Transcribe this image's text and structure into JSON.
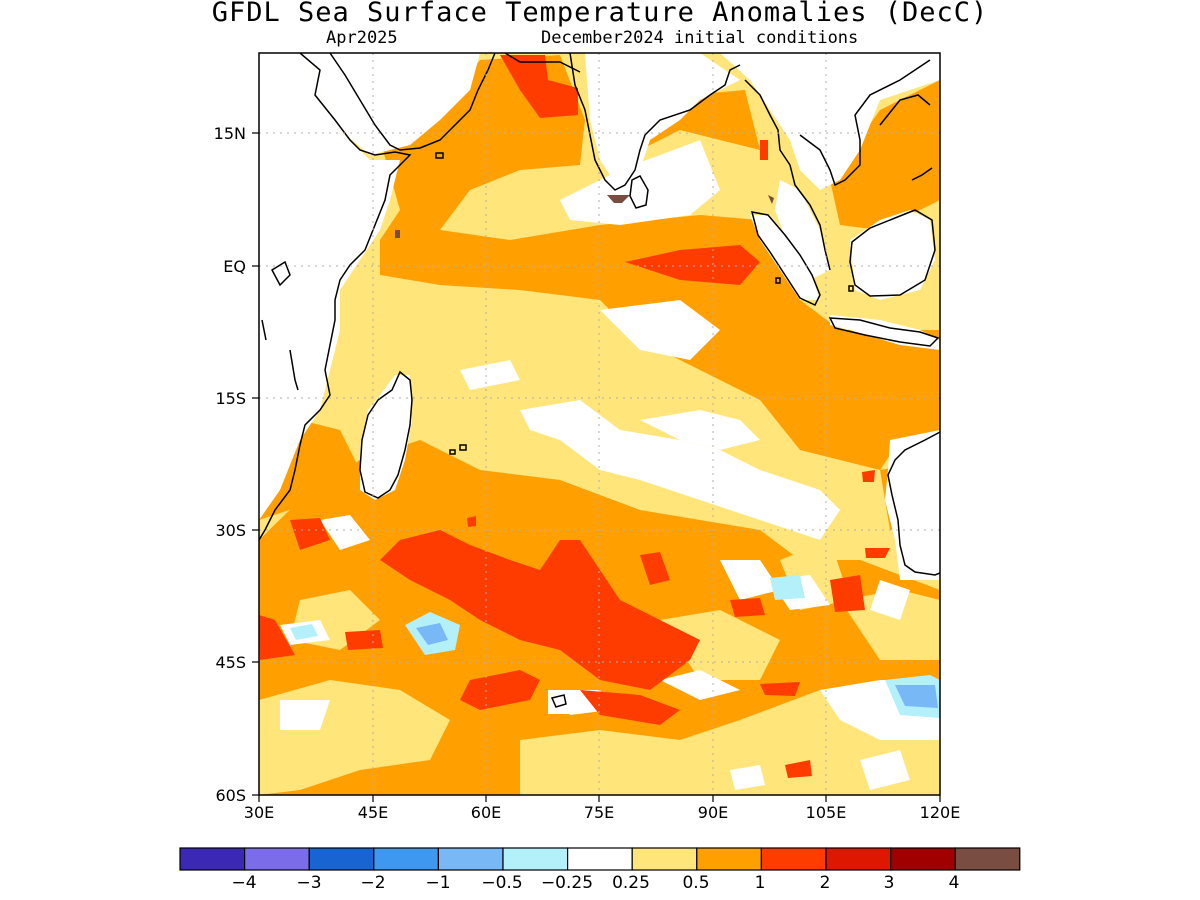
{
  "title": "GFDL Sea Surface Temperature Anomalies (DecC)",
  "forecast_month": "Apr2025",
  "initial_conditions": "December2024 initial conditions",
  "lon_labels": [
    "30E",
    "45E",
    "60E",
    "75E",
    "90E",
    "105E",
    "120E"
  ],
  "lat_labels": [
    "15N",
    "EQ",
    "15S",
    "30S",
    "45S",
    "60S"
  ],
  "colorbar": {
    "colors": [
      "#3b28b4",
      "#7b6cea",
      "#1764d2",
      "#3f98f0",
      "#78b8f6",
      "#b4f0fa",
      "#ffffff",
      "#ffe57a",
      "#ffa000",
      "#ff3c00",
      "#de1800",
      "#a10000",
      "#7a4d42"
    ],
    "labels": [
      "−4",
      "−3",
      "−2",
      "−1",
      "−0.5",
      "−0.25",
      "0.25",
      "0.5",
      "1",
      "2",
      "3",
      "4"
    ]
  }
}
